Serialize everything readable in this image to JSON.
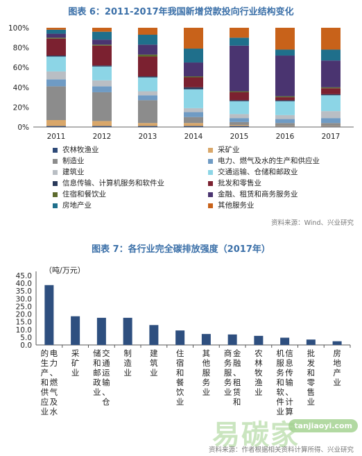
{
  "chart1_title": "图表 6：2011-2017年我国新增贷款投向行业结构变化",
  "chart2_title": "图表 7：各行业完全碳排放强度（2017年）",
  "source1": "资料来源：Wind、兴业研究",
  "source2": "资料来源：作者根据相关资料计算所得、兴业研究",
  "chart2_unit": "（吨/万元）",
  "watermark": {
    "text": "易碳家",
    "domain": "tanjiaoyi.com"
  },
  "chart_data": [
    {
      "type": "bar",
      "stacked": true,
      "categories": [
        "2011",
        "2012",
        "2013",
        "2014",
        "2015",
        "2016",
        "2017"
      ],
      "yticks": [
        "0%",
        "20%",
        "40%",
        "60%",
        "80%",
        "100%"
      ],
      "ylim": [
        0,
        100
      ],
      "legend_position": "bottom",
      "series": [
        {
          "name": "农林牧渔业",
          "color": "#2e4a78",
          "values": [
            1,
            1,
            1,
            1,
            1,
            0.5,
            0.5
          ]
        },
        {
          "name": "采矿业",
          "color": "#d9a76a",
          "values": [
            6,
            5,
            3,
            3,
            1,
            0.5,
            0.5
          ]
        },
        {
          "name": "制造业",
          "color": "#8c8c8c",
          "values": [
            34,
            29,
            23,
            6,
            3,
            3,
            3
          ]
        },
        {
          "name": "电力、燃气及水的生产和供应业",
          "color": "#6f9bc4",
          "values": [
            7,
            6,
            5,
            5,
            4,
            4,
            5
          ]
        },
        {
          "name": "建筑业",
          "color": "#b9bec4",
          "values": [
            8,
            6,
            4,
            4,
            4,
            4,
            7
          ]
        },
        {
          "name": "交通运输、仓储和邮政业",
          "color": "#8cd5e6",
          "values": [
            15,
            14,
            14,
            19,
            13,
            14,
            16
          ]
        },
        {
          "name": "信息传输、计算机服务和软件业",
          "color": "#2a3a5a",
          "values": [
            1,
            1,
            1,
            2,
            1,
            1,
            1
          ]
        },
        {
          "name": "批发和零售业",
          "color": "#7b2130",
          "values": [
            17,
            20,
            20,
            10,
            8,
            3,
            6
          ]
        },
        {
          "name": "住宿和餐饮业",
          "color": "#5d6b2e",
          "values": [
            1,
            1,
            2,
            1,
            1,
            1,
            1
          ]
        },
        {
          "name": "金融、租赁和商务服务业",
          "color": "#4a3470",
          "values": [
            4,
            5,
            10,
            14,
            46,
            41,
            27
          ]
        },
        {
          "name": "房地产业",
          "color": "#1f6f8b",
          "values": [
            4,
            8,
            10,
            14,
            8,
            6,
            11
          ]
        },
        {
          "name": "其他服务业",
          "color": "#c8621a",
          "values": [
            2,
            4,
            7,
            21,
            10,
            22,
            22
          ]
        }
      ]
    },
    {
      "type": "bar",
      "ylabel": "（吨/万元）",
      "ylim": [
        0,
        45
      ],
      "yticks": [
        "0.0",
        "5.0",
        "10.0",
        "15.0",
        "20.0",
        "25.0",
        "30.0",
        "35.0",
        "40.0",
        "45.0"
      ],
      "color": "#2e4f7f",
      "categories": [
        "电力、燃气及水的生产和供应业",
        "采矿业",
        "交通运输、仓储和邮政业",
        "制造业",
        "建筑业",
        "住宿和餐饮业",
        "其他服务业",
        "金融、租赁和商务服务业",
        "农林牧渔业",
        "信息传输、计算机服务和软件业",
        "批发和零售业",
        "房地产业"
      ],
      "values": [
        38.8,
        18.6,
        17.6,
        17.6,
        12.9,
        9.4,
        7.1,
        6.8,
        5.9,
        4.7,
        3.5,
        2.4
      ]
    }
  ]
}
